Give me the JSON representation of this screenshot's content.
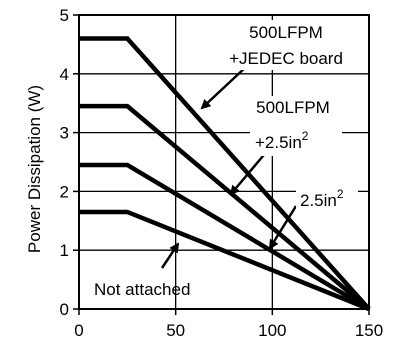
{
  "chart_data": {
    "type": "line",
    "title": "",
    "xlabel": "",
    "ylabel": "Power Dissipation (W)",
    "xlim": [
      0,
      150
    ],
    "ylim": [
      0,
      5
    ],
    "xticks": [
      "0",
      "50",
      "100",
      "150"
    ],
    "yticks": [
      "0",
      "1",
      "2",
      "3",
      "4",
      "5"
    ],
    "grid": true,
    "legend": "none",
    "series": [
      {
        "key": "s1",
        "x": [
          0,
          25,
          150
        ],
        "y": [
          4.6,
          4.6,
          0
        ]
      },
      {
        "key": "s2",
        "x": [
          0,
          25,
          150
        ],
        "y": [
          3.45,
          3.45,
          0
        ]
      },
      {
        "key": "s3",
        "x": [
          0,
          25,
          150
        ],
        "y": [
          2.45,
          2.45,
          0
        ]
      },
      {
        "key": "s4",
        "x": [
          0,
          25,
          150
        ],
        "y": [
          1.65,
          1.65,
          0
        ]
      }
    ],
    "annotations": [
      {
        "key": "a1",
        "lines": [
          "500LFPM",
          "+JEDEC board"
        ]
      },
      {
        "key": "a2",
        "lines": [
          "500LFPM",
          "+2.5in",
          "2"
        ]
      },
      {
        "key": "a3",
        "lines": [
          "2.5in",
          "2"
        ]
      },
      {
        "key": "a4",
        "lines": [
          "Not attached"
        ]
      }
    ]
  },
  "colors": {
    "line": "#000000",
    "grid": "#000000",
    "background": "#ffffff"
  }
}
